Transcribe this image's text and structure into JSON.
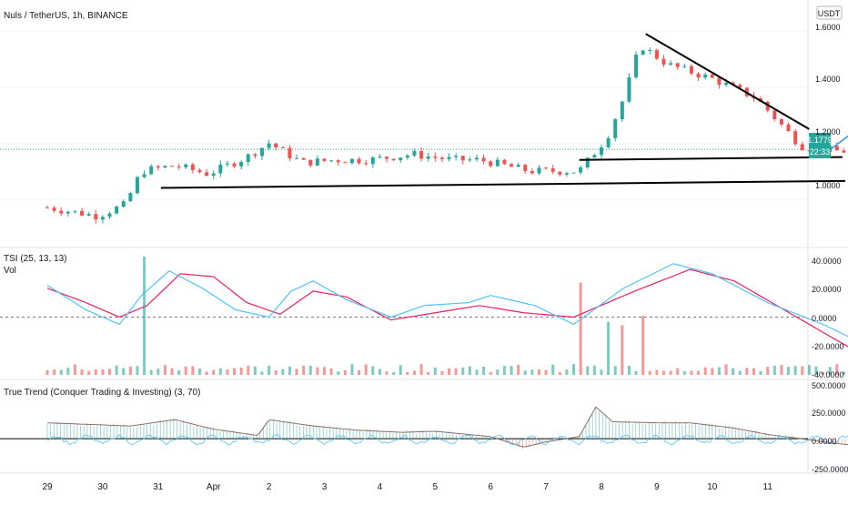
{
  "colors": {
    "up": "#26a69a",
    "down": "#ef5350",
    "tsi_line": "#4fc3f7",
    "tsi_signal": "#e91e63",
    "trend_line": "#000000",
    "projection": "#2196f3",
    "axis_text": "#131722",
    "price_badge": "#26a69a"
  },
  "main_pane": {
    "title": "Nuls / TetherUS, 1h, BINANCE",
    "currency": "USDT",
    "current_price": "1.1779",
    "countdown": "22:33",
    "tick_labels": [
      "1.6000",
      "1.4000",
      "1.2000",
      "1.0000"
    ]
  },
  "tsi_pane": {
    "title": "TSI (25, 13, 13)",
    "vol_label": "Vol",
    "tick_labels": [
      "40.0000",
      "20.0000",
      "0.0000",
      "-20.0000",
      "-40.0000"
    ]
  },
  "trend_pane": {
    "title": "True Trend (Conquer Trading & Investing) (3, 70)",
    "tick_labels": [
      "500.0000",
      "250.0000",
      "0.0000",
      "-250.0000"
    ]
  },
  "time_axis": {
    "labels": [
      "29",
      "30",
      "31",
      "Apr",
      "2",
      "3",
      "4",
      "5",
      "6",
      "7",
      "8",
      "9",
      "10",
      "11"
    ]
  },
  "chart_data": [
    {
      "type": "candlestick",
      "title": "Nuls / TetherUS, 1h, BINANCE",
      "x_labels": [
        "29",
        "30",
        "31",
        "Apr",
        "2",
        "3",
        "4",
        "5",
        "6",
        "7",
        "8",
        "9",
        "10",
        "11"
      ],
      "ylim": [
        0.85,
        1.62
      ],
      "y_ticks": [
        1.0,
        1.2,
        1.4,
        1.6
      ],
      "price_path": [
        [
          0,
          0.97
        ],
        [
          0.9,
          0.94
        ],
        [
          1.4,
          0.98
        ],
        [
          1.7,
          1.1
        ],
        [
          2.3,
          1.12
        ],
        [
          2.9,
          1.09
        ],
        [
          3.6,
          1.15
        ],
        [
          4.0,
          1.2
        ],
        [
          4.6,
          1.13
        ],
        [
          5.2,
          1.14
        ],
        [
          5.8,
          1.14
        ],
        [
          6.6,
          1.16
        ],
        [
          7.3,
          1.14
        ],
        [
          7.8,
          1.14
        ],
        [
          8.7,
          1.1
        ],
        [
          9.6,
          1.1
        ],
        [
          10.1,
          1.22
        ],
        [
          10.4,
          1.36
        ],
        [
          10.7,
          1.55
        ],
        [
          11.2,
          1.48
        ],
        [
          12.0,
          1.43
        ],
        [
          12.8,
          1.36
        ],
        [
          13.6,
          1.19
        ],
        [
          14.3,
          1.17
        ],
        [
          14.75,
          1.18
        ]
      ],
      "last_price": 1.1779,
      "drawings": {
        "lower_support": [
          [
            2.05,
            1.04
          ],
          [
            14.4,
            1.065
          ]
        ],
        "upper_support": [
          [
            9.6,
            1.14
          ],
          [
            14.35,
            1.15
          ]
        ],
        "resistance": [
          [
            10.8,
            1.59
          ],
          [
            13.75,
            1.25
          ]
        ],
        "projection": [
          [
            14.15,
            1.18
          ],
          [
            14.45,
            1.225
          ],
          [
            14.85,
            1.16
          ],
          [
            15.3,
            1.32
          ],
          [
            16.2,
            1.54
          ],
          [
            16.65,
            1.59
          ]
        ]
      }
    },
    {
      "type": "line",
      "title": "TSI (25, 13, 13)",
      "ylim": [
        -40,
        40
      ],
      "series": [
        {
          "values": [
            [
              0,
              22
            ],
            [
              0.7,
              5
            ],
            [
              1.3,
              -5
            ],
            [
              1.7,
              15
            ],
            [
              2.2,
              32
            ],
            [
              2.8,
              20
            ],
            [
              3.4,
              5
            ],
            [
              4.0,
              0
            ],
            [
              4.4,
              18
            ],
            [
              4.8,
              25
            ],
            [
              5.4,
              12
            ],
            [
              6.2,
              0
            ],
            [
              6.8,
              8
            ],
            [
              7.6,
              10
            ],
            [
              8.0,
              15
            ],
            [
              8.8,
              8
            ],
            [
              9.5,
              -5
            ],
            [
              10.4,
              20
            ],
            [
              11.3,
              37
            ],
            [
              12.0,
              30
            ],
            [
              13.0,
              10
            ],
            [
              14.0,
              -5
            ],
            [
              14.7,
              -18
            ]
          ]
        },
        {
          "values": [
            [
              0,
              20
            ],
            [
              0.7,
              10
            ],
            [
              1.3,
              0
            ],
            [
              1.8,
              8
            ],
            [
              2.4,
              30
            ],
            [
              3.0,
              28
            ],
            [
              3.6,
              10
            ],
            [
              4.2,
              2
            ],
            [
              4.8,
              18
            ],
            [
              5.4,
              14
            ],
            [
              6.2,
              -2
            ],
            [
              7.0,
              3
            ],
            [
              7.8,
              8
            ],
            [
              8.6,
              3
            ],
            [
              9.5,
              0
            ],
            [
              10.6,
              18
            ],
            [
              11.6,
              33
            ],
            [
              12.4,
              25
            ],
            [
              13.3,
              5
            ],
            [
              14.2,
              -15
            ],
            [
              14.8,
              -28
            ]
          ]
        }
      ]
    },
    {
      "type": "bar",
      "title": "Vol",
      "description_note": "volume histogram at bottom of TSI pane; spikes on 30 Mar and 4–5 Apr",
      "spikes": [
        [
          1.8,
          1.0
        ],
        [
          9.6,
          0.78
        ],
        [
          10.1,
          0.45
        ],
        [
          10.4,
          0.42
        ],
        [
          10.8,
          0.5
        ]
      ]
    },
    {
      "type": "area",
      "title": "True Trend (Conquer Trading & Investing) (3, 70)",
      "ylim": [
        -300,
        500
      ],
      "y_ticks": [
        -250,
        0,
        250,
        500
      ],
      "trend": [
        [
          0,
          150
        ],
        [
          1.5,
          120
        ],
        [
          2.3,
          180
        ],
        [
          3.0,
          90
        ],
        [
          3.8,
          30
        ],
        [
          4.0,
          180
        ],
        [
          4.8,
          120
        ],
        [
          5.6,
          80
        ],
        [
          6.4,
          60
        ],
        [
          7.0,
          70
        ],
        [
          8.0,
          20
        ],
        [
          8.6,
          -80
        ],
        [
          9.0,
          -30
        ],
        [
          9.6,
          20
        ],
        [
          9.9,
          300
        ],
        [
          10.2,
          160
        ],
        [
          11.0,
          150
        ],
        [
          11.6,
          150
        ],
        [
          12.4,
          100
        ],
        [
          13.0,
          40
        ],
        [
          13.6,
          0
        ],
        [
          14.0,
          -30
        ],
        [
          14.5,
          -60
        ],
        [
          14.75,
          -70
        ]
      ]
    }
  ]
}
